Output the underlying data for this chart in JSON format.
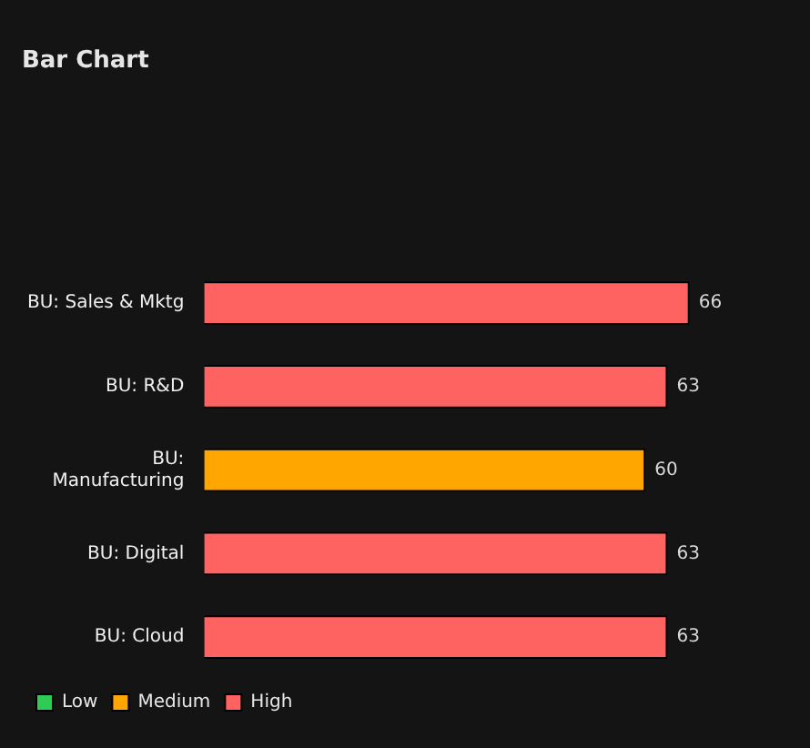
{
  "chart_data": {
    "type": "bar",
    "title": "Bar Chart",
    "orientation": "horizontal",
    "categories": [
      "BU: Sales & Mktg",
      "BU: R&D",
      "BU: Manufacturing",
      "BU: Digital",
      "BU: Cloud"
    ],
    "series": [
      {
        "name": "Low",
        "color": "#2ecc55",
        "values": [
          null,
          null,
          null,
          null,
          null
        ]
      },
      {
        "name": "Medium",
        "color": "#ffa600",
        "values": [
          null,
          null,
          60,
          null,
          null
        ]
      },
      {
        "name": "High",
        "color": "#ff6361",
        "values": [
          66,
          63,
          null,
          63,
          63
        ]
      }
    ],
    "data_labels": true,
    "legend": "bottom left"
  }
}
